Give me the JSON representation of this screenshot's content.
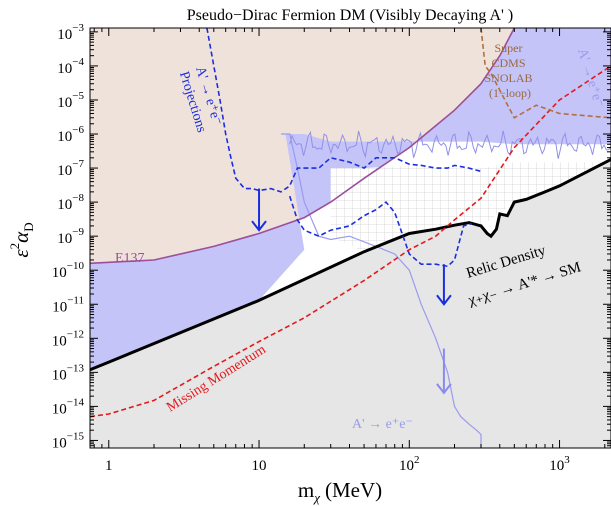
{
  "chart_data": {
    "type": "line",
    "title": "Pseudo−Dirac Fermion DM (Visibly Decaying A' )",
    "xlabel": "m",
    "xlabel_sub": "χ",
    "xlabel_unit": "(MeV)",
    "ylabel_base": "ε",
    "ylabel_sup": "2",
    "ylabel_tail": "α",
    "ylabel_sub": "D",
    "xscale": "log",
    "yscale": "log",
    "xlim": [
      0.75,
      2200
    ],
    "ylim": [
      6e-16,
      0.0013
    ],
    "x_ticks": [
      {
        "value": 1,
        "base": "1",
        "exp": ""
      },
      {
        "value": 10,
        "base": "10",
        "exp": ""
      },
      {
        "value": 100,
        "base": "10",
        "exp": "2"
      },
      {
        "value": 1000,
        "base": "10",
        "exp": "3"
      }
    ],
    "y_ticks": [
      {
        "value": 0.001,
        "base": "10",
        "exp": "−3"
      },
      {
        "value": 0.0001,
        "base": "10",
        "exp": "−4"
      },
      {
        "value": 1e-05,
        "base": "10",
        "exp": "−5"
      },
      {
        "value": 1e-06,
        "base": "10",
        "exp": "−6"
      },
      {
        "value": 1e-07,
        "base": "10",
        "exp": "−7"
      },
      {
        "value": 1e-08,
        "base": "10",
        "exp": "−8"
      },
      {
        "value": 1e-09,
        "base": "10",
        "exp": "−9"
      },
      {
        "value": 1e-10,
        "base": "10",
        "exp": "−10"
      },
      {
        "value": 1e-11,
        "base": "10",
        "exp": "−11"
      },
      {
        "value": 1e-12,
        "base": "10",
        "exp": "−12"
      },
      {
        "value": 1e-13,
        "base": "10",
        "exp": "−13"
      },
      {
        "value": 1e-14,
        "base": "10",
        "exp": "−14"
      },
      {
        "value": 1e-15,
        "base": "10",
        "exp": "−15"
      }
    ],
    "series": [
      {
        "name": "E137",
        "color": "#9b4f9b",
        "fill": "#efe2da",
        "style": "solid",
        "x": [
          0.75,
          2,
          5,
          10,
          20,
          30,
          50,
          100,
          200,
          300,
          400,
          500
        ],
        "y": [
          1.6e-10,
          2e-10,
          5e-10,
          1.2e-09,
          3.5e-09,
          1e-08,
          5e-08,
          4e-07,
          5e-06,
          3e-05,
          0.0002,
          0.0013
        ]
      },
      {
        "name": "Relic Density",
        "color": "#000000",
        "style": "solid-thick",
        "x": [
          0.75,
          1,
          10,
          50,
          100,
          150,
          200,
          250,
          300,
          330,
          350,
          380,
          400,
          450,
          500,
          600,
          800,
          1000,
          2200
        ],
        "y": [
          1.2e-13,
          2e-13,
          1.3e-11,
          3.5e-10,
          1.2e-09,
          1.6e-09,
          2.1e-09,
          2.5e-09,
          2e-09,
          1.2e-09,
          1e-09,
          1.6e-09,
          4.5e-09,
          4e-09,
          1e-08,
          1.2e-08,
          2e-08,
          3e-08,
          1.8e-07
        ]
      },
      {
        "name": "Missing Momentum",
        "color": "#e41a1c",
        "style": "dashed",
        "x": [
          0.75,
          1,
          2,
          5,
          10,
          20,
          50,
          100,
          150,
          200,
          300,
          500,
          1000,
          2200
        ],
        "y": [
          5e-15,
          6e-15,
          1.5e-14,
          1.5e-13,
          8e-13,
          4e-12,
          5e-11,
          4e-10,
          1e-09,
          3e-09,
          1.3e-08,
          4e-07,
          1e-05,
          0.0001
        ]
      },
      {
        "name": "Super CDMS SNOLAB (1−loop)",
        "color": "#b07040",
        "style": "dashed",
        "x": [
          300,
          320,
          350,
          500,
          700,
          1000,
          2200
        ],
        "y": [
          0.0013,
          0.0001,
          6e-05,
          3e-06,
          7e-06,
          4e-06,
          3e-06
        ]
      },
      {
        "name": "A' → e⁺e⁻ Projections",
        "color": "#1a2ee0",
        "style": "dashed",
        "x": [
          4.5,
          5.5,
          6,
          6.5,
          7,
          8,
          9,
          10,
          12,
          14,
          16,
          18,
          20,
          25,
          30,
          40,
          50,
          60,
          80,
          100,
          120,
          150,
          180,
          200,
          250,
          300
        ],
        "y": [
          0.0013,
          1e-05,
          1e-06,
          2e-07,
          5e-08,
          2.5e-08,
          2.5e-08,
          2.2e-08,
          2.5e-08,
          2e-08,
          3e-08,
          1e-07,
          1e-07,
          1e-07,
          2e-07,
          1.5e-07,
          1e-07,
          2e-07,
          2e-07,
          1.3e-07,
          1.2e-07,
          1e-07,
          1e-07,
          1.2e-07,
          1e-07,
          8e-08
        ]
      },
      {
        "name": "Projection lower contour",
        "color": "#1a2ee0",
        "style": "dashed",
        "x": [
          16,
          18,
          20,
          25,
          30,
          40,
          50,
          60,
          70,
          80,
          100,
          120,
          150,
          180,
          200,
          230,
          260
        ],
        "y": [
          1.5e-08,
          3e-09,
          1.5e-09,
          1e-09,
          1.5e-09,
          2e-09,
          4e-09,
          6e-09,
          1e-08,
          5e-09,
          3e-10,
          1.5e-10,
          1.5e-10,
          1.3e-10,
          2e-10,
          2e-09,
          2.3e-09
        ]
      }
    ],
    "regions": [
      {
        "name": "E137 excluded",
        "fill": "#efe2da"
      },
      {
        "name": "A' → e⁺e⁻ excluded",
        "fill": "#c4c4f8"
      },
      {
        "name": "Below relic density",
        "fill": "#e6e6e6"
      },
      {
        "name": "Projection reach hatch",
        "fill": "#ffffff"
      }
    ],
    "annotations": {
      "e137": "E137",
      "proj_line1": "A' → e⁺e⁻",
      "proj_line2": "Projections",
      "cdms1": "Super",
      "cdms2": "CDMS",
      "cdms3": "SNOLAB",
      "cdms4": "(1−loop)",
      "ee_right": "A' → e⁺e⁻",
      "relic1": "Relic Density",
      "relic2": "χ₊χ₋ → A'* → SM",
      "missing": "Missing Momentum",
      "ee_bottom": "A' → e⁺e⁻"
    },
    "colors": {
      "e137_region": "#efe2da",
      "ee_region": "#c4c4f8",
      "relic_region": "#e6e6e6",
      "ee_curve": "#aaaaf0"
    },
    "grid": false
  }
}
